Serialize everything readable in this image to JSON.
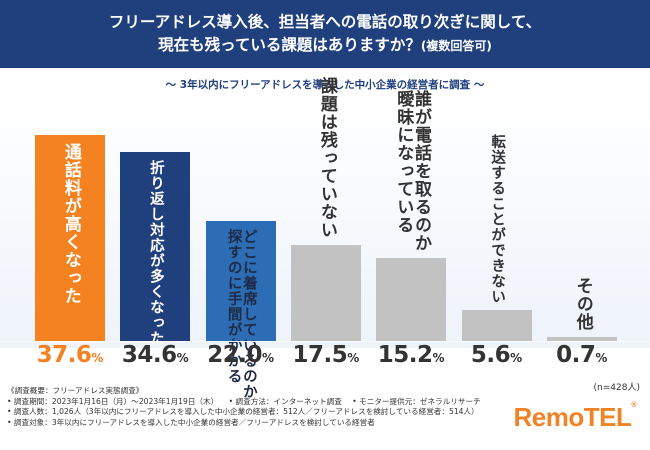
{
  "header": {
    "line1": "フリーアドレス導入後、担当者への電話の取り次ぎに関して、",
    "line2": "現在も残っている課題はありますか？",
    "line2_small": "(複数回答可)"
  },
  "subtitle": "～ 3年以内にフリーアドレスを導入した中小企業の経営者に調査 ～",
  "n_label": "(n=428人)",
  "notes": {
    "title": "《調査概要：フリーアドレス実態調査》",
    "period": "• 調査期間：2023年1月16日（月）〜2023年1月19日（木）",
    "method": "• 調査方法：インターネット調査",
    "provider": "• モニター提供元：ゼネラルリサーチ",
    "count": "• 調査人数：1,026人（3年以内にフリーアドレスを導入した中小企業の経営者：512人／フリーアドレスを検討している経営者：514人）",
    "target": "• 調査対象：3年以内にフリーアドレスを導入した中小企業の経営者／フリーアドレスを検討している経営者"
  },
  "logo": {
    "text": "RemoTEL",
    "mark": "®"
  },
  "colors": {
    "header": "#1f3f7d",
    "orange": "#f58220",
    "navy": "#1f3f7d",
    "blue": "#2c6db5",
    "gray": "#c2c2c2"
  },
  "chart_data": {
    "type": "bar",
    "unit": "%",
    "ylim": [
      0,
      40
    ],
    "categories": [
      "通話料が高くなった",
      "折り返し対応が多くなった",
      "どこに着席しているのか探すのに手間がかかる",
      "課題は残っていない",
      "誰が電話を取るのか曖昧になっている",
      "転送することができない",
      "その他"
    ],
    "label_columns": [
      [
        "通話料が高くなった"
      ],
      [
        "折り返し対応が多くなった"
      ],
      [
        "どこに着席しているのか",
        "探すのに手間がかかる"
      ],
      [
        "課題は残っていない"
      ],
      [
        "誰が電話を取るのか",
        "曖昧になっている"
      ],
      [
        "転送することができない"
      ],
      [
        "その他"
      ]
    ],
    "values": [
      37.6,
      34.6,
      22.0,
      17.5,
      15.2,
      5.6,
      0.7
    ],
    "value_labels": [
      "37.6",
      "34.6",
      "22.0",
      "17.5",
      "15.2",
      "5.6",
      "0.7"
    ],
    "bar_colors": [
      "#f58220",
      "#1f3f7d",
      "#2c6db5",
      "#c2c2c2",
      "#c2c2c2",
      "#c2c2c2",
      "#c2c2c2"
    ],
    "label_colors": [
      "#ffffff",
      "#ffffff",
      "#1f2a44",
      "#333333",
      "#333333",
      "#333333",
      "#333333"
    ]
  }
}
